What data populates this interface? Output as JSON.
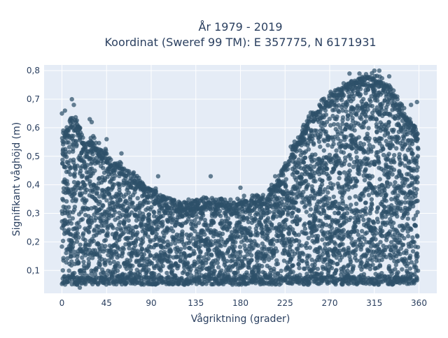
{
  "chart_data": {
    "type": "scatter",
    "title_line1": "År 1979 - 2019",
    "title_line2": "Koordinat (Sweref 99 TM): E 357775, N 6171931",
    "xlabel": "Vågriktning (grader)",
    "ylabel": "Signifikant våghöjd (m)",
    "xlim": [
      -18,
      378
    ],
    "ylim": [
      0.02,
      0.82
    ],
    "xticks": [
      0,
      45,
      90,
      135,
      180,
      225,
      270,
      315,
      360
    ],
    "xtick_labels": [
      "0",
      "45",
      "90",
      "135",
      "180",
      "225",
      "270",
      "315",
      "360"
    ],
    "yticks": [
      0.1,
      0.2,
      0.3,
      0.4,
      0.5,
      0.6,
      0.7,
      0.8
    ],
    "ytick_labels": [
      "0,1",
      "0,2",
      "0,3",
      "0,4",
      "0,5",
      "0,6",
      "0,7",
      "0,8"
    ],
    "grid": true,
    "marker_color": "#2e5069",
    "plot_bg": "#e5ecf6",
    "upper_envelope": [
      [
        0,
        0.57
      ],
      [
        5,
        0.6
      ],
      [
        10,
        0.64
      ],
      [
        15,
        0.62
      ],
      [
        20,
        0.58
      ],
      [
        25,
        0.55
      ],
      [
        30,
        0.57
      ],
      [
        35,
        0.54
      ],
      [
        40,
        0.52
      ],
      [
        45,
        0.52
      ],
      [
        50,
        0.48
      ],
      [
        55,
        0.48
      ],
      [
        60,
        0.47
      ],
      [
        65,
        0.45
      ],
      [
        70,
        0.44
      ],
      [
        75,
        0.43
      ],
      [
        80,
        0.41
      ],
      [
        85,
        0.4
      ],
      [
        90,
        0.39
      ],
      [
        95,
        0.38
      ],
      [
        100,
        0.37
      ],
      [
        105,
        0.36
      ],
      [
        110,
        0.35
      ],
      [
        115,
        0.35
      ],
      [
        120,
        0.34
      ],
      [
        125,
        0.34
      ],
      [
        130,
        0.34
      ],
      [
        135,
        0.35
      ],
      [
        140,
        0.35
      ],
      [
        145,
        0.35
      ],
      [
        150,
        0.35
      ],
      [
        155,
        0.35
      ],
      [
        160,
        0.35
      ],
      [
        165,
        0.35
      ],
      [
        170,
        0.34
      ],
      [
        175,
        0.34
      ],
      [
        180,
        0.35
      ],
      [
        185,
        0.35
      ],
      [
        190,
        0.35
      ],
      [
        195,
        0.36
      ],
      [
        200,
        0.36
      ],
      [
        205,
        0.37
      ],
      [
        210,
        0.39
      ],
      [
        215,
        0.41
      ],
      [
        220,
        0.44
      ],
      [
        225,
        0.47
      ],
      [
        230,
        0.52
      ],
      [
        235,
        0.55
      ],
      [
        240,
        0.58
      ],
      [
        245,
        0.61
      ],
      [
        250,
        0.64
      ],
      [
        255,
        0.66
      ],
      [
        260,
        0.68
      ],
      [
        265,
        0.7
      ],
      [
        270,
        0.72
      ],
      [
        275,
        0.73
      ],
      [
        280,
        0.74
      ],
      [
        285,
        0.75
      ],
      [
        290,
        0.76
      ],
      [
        295,
        0.77
      ],
      [
        300,
        0.78
      ],
      [
        305,
        0.78
      ],
      [
        310,
        0.78
      ],
      [
        315,
        0.78
      ],
      [
        320,
        0.78
      ],
      [
        325,
        0.77
      ],
      [
        330,
        0.75
      ],
      [
        335,
        0.72
      ],
      [
        340,
        0.69
      ],
      [
        345,
        0.67
      ],
      [
        350,
        0.64
      ],
      [
        355,
        0.61
      ],
      [
        360,
        0.58
      ]
    ],
    "lower_bound": 0.05,
    "sample_points": [
      [
        0,
        0.65
      ],
      [
        3,
        0.66
      ],
      [
        10,
        0.7
      ],
      [
        12,
        0.68
      ],
      [
        28,
        0.63
      ],
      [
        30,
        0.62
      ],
      [
        45,
        0.56
      ],
      [
        60,
        0.51
      ],
      [
        97,
        0.43
      ],
      [
        150,
        0.43
      ],
      [
        180,
        0.39
      ],
      [
        215,
        0.43
      ],
      [
        240,
        0.52
      ],
      [
        255,
        0.59
      ],
      [
        263,
        0.7
      ],
      [
        290,
        0.79
      ],
      [
        300,
        0.79
      ],
      [
        315,
        0.8
      ],
      [
        320,
        0.8
      ],
      [
        330,
        0.78
      ],
      [
        352,
        0.68
      ],
      [
        358,
        0.69
      ],
      [
        350,
        0.6
      ],
      [
        18,
        0.04
      ]
    ]
  }
}
